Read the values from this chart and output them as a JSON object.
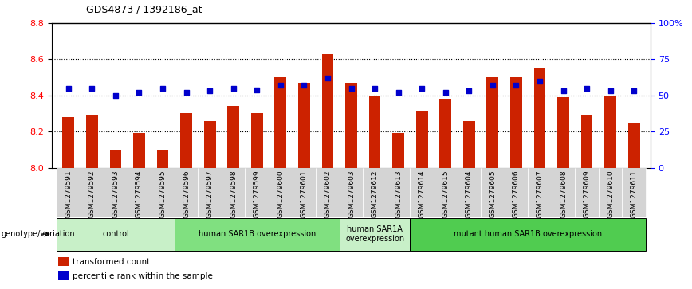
{
  "title": "GDS4873 / 1392186_at",
  "samples": [
    "GSM1279591",
    "GSM1279592",
    "GSM1279593",
    "GSM1279594",
    "GSM1279595",
    "GSM1279596",
    "GSM1279597",
    "GSM1279598",
    "GSM1279599",
    "GSM1279600",
    "GSM1279601",
    "GSM1279602",
    "GSM1279603",
    "GSM1279612",
    "GSM1279613",
    "GSM1279614",
    "GSM1279615",
    "GSM1279604",
    "GSM1279605",
    "GSM1279606",
    "GSM1279607",
    "GSM1279608",
    "GSM1279609",
    "GSM1279610",
    "GSM1279611"
  ],
  "red_values": [
    8.28,
    8.29,
    8.1,
    8.19,
    8.1,
    8.3,
    8.26,
    8.34,
    8.3,
    8.5,
    8.47,
    8.63,
    8.47,
    8.4,
    8.19,
    8.31,
    8.38,
    8.26,
    8.5,
    8.5,
    8.55,
    8.39,
    8.29,
    8.4,
    8.25
  ],
  "blue_values": [
    55,
    55,
    50,
    52,
    55,
    52,
    53,
    55,
    54,
    57,
    57,
    62,
    55,
    55,
    52,
    55,
    52,
    53,
    57,
    57,
    60,
    53,
    55,
    53,
    53
  ],
  "ylim_left": [
    8.0,
    8.8
  ],
  "ylim_right": [
    0,
    100
  ],
  "yticks_left": [
    8.0,
    8.2,
    8.4,
    8.6,
    8.8
  ],
  "yticks_right": [
    0,
    25,
    50,
    75,
    100
  ],
  "ytick_labels_right": [
    "0",
    "25",
    "50",
    "75",
    "100%"
  ],
  "groups": [
    {
      "label": "control",
      "start": 0,
      "end": 5,
      "color": "#c8f0c8"
    },
    {
      "label": "human SAR1B overexpression",
      "start": 5,
      "end": 12,
      "color": "#80e080"
    },
    {
      "label": "human SAR1A\noverexpression",
      "start": 12,
      "end": 15,
      "color": "#c8f0c8"
    },
    {
      "label": "mutant human SAR1B overexpression",
      "start": 15,
      "end": 25,
      "color": "#50cc50"
    }
  ],
  "bar_color": "#cc2200",
  "dot_color": "#0000cc",
  "bar_width": 0.5,
  "genotype_label": "genotype/variation",
  "legend_items": [
    {
      "color": "#cc2200",
      "label": "transformed count"
    },
    {
      "color": "#0000cc",
      "label": "percentile rank within the sample"
    }
  ],
  "xticklabel_bg": "#d4d4d4"
}
